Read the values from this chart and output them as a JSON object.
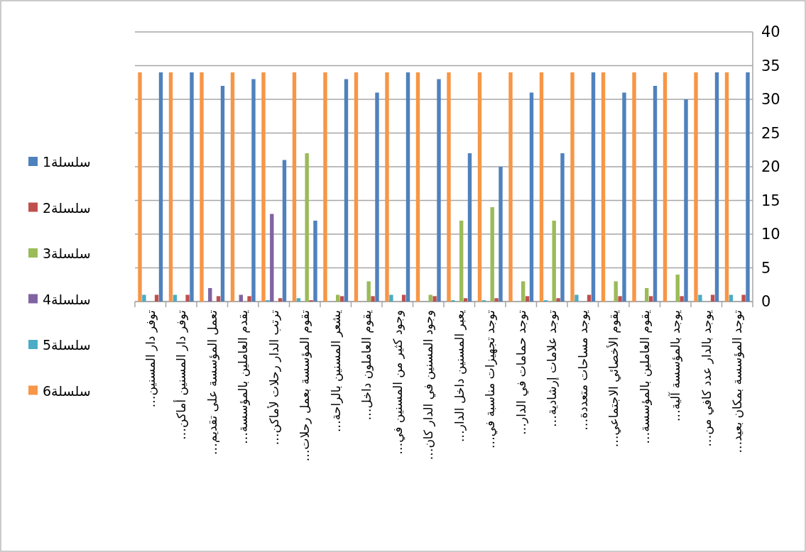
{
  "chart_data": {
    "type": "bar",
    "categories": [
      "توفر دار المسنين…",
      "توفر دار المسنين أماكن…",
      "تعمل المؤسسة على تقديم…",
      "يقدم العاملين بالمؤسسة…",
      "ترتب الدار رحلات لأماكن…",
      "تقوم المؤسسة بعمل رحلات…",
      "يشعر المسنين بالراحة…",
      "يقوم العاملون داخل…",
      "وجود كثير من المسنين في…",
      "وجود المسنين في الدار كان…",
      "يعبر المسنين داخل الدار…",
      "توجد تجهيزات مناسبة في…",
      "توجد حمامات في الدار…",
      "توجد علامات إرشادية…",
      "يوجد مساحات متعددة…",
      "يقوم الأخصائي الاجتماعي…",
      "يقوم العاملين بالمؤسسة…",
      "يوجد بالمؤسسة آلية…",
      "يوجد بالدار عدد كافي من…",
      "توجد المؤسسة بمكان بعيد…"
    ],
    "series": [
      {
        "name": "سلسلة1",
        "color": "#4f81bd",
        "values": [
          34,
          34,
          32,
          33,
          21,
          12,
          33,
          31,
          34,
          33,
          22,
          20,
          31,
          22,
          34,
          31,
          32,
          30,
          34,
          34
        ]
      },
      {
        "name": "سلسلة2",
        "color": "#c0504d",
        "values": [
          1,
          1,
          0.8,
          0.8,
          0.5,
          0.2,
          0.8,
          0.8,
          1,
          0.8,
          0.5,
          0.5,
          0.8,
          0.5,
          1,
          0.8,
          0.8,
          0.8,
          1,
          1
        ]
      },
      {
        "name": "سلسلة3",
        "color": "#9bbb59",
        "values": [
          0,
          0,
          0,
          0,
          0,
          22,
          1,
          3,
          0,
          1,
          12,
          14,
          3,
          12,
          0,
          3,
          2,
          4,
          0,
          0
        ]
      },
      {
        "name": "سلسلة4",
        "color": "#8064a2",
        "values": [
          0,
          0,
          2,
          1,
          13,
          0,
          0,
          0,
          0,
          0,
          0,
          0,
          0,
          0,
          0,
          0,
          0,
          0,
          0,
          0
        ]
      },
      {
        "name": "سلسلة5",
        "color": "#4bacc6",
        "values": [
          1,
          1,
          0,
          0,
          0.2,
          0.5,
          0,
          0,
          1,
          0,
          0.2,
          0.2,
          0,
          0.2,
          1,
          0,
          0,
          0,
          1,
          1
        ]
      },
      {
        "name": "سلسلة6",
        "color": "#f79646",
        "values": [
          34,
          34,
          34,
          34,
          34,
          34,
          34,
          34,
          34,
          34,
          34,
          34,
          34,
          34,
          34,
          34,
          34,
          34,
          34,
          34
        ]
      }
    ],
    "ylim": [
      0,
      40
    ],
    "yticks": [
      0,
      5,
      10,
      15,
      20,
      25,
      30,
      35,
      40
    ],
    "grid": "y",
    "legend": "left"
  }
}
